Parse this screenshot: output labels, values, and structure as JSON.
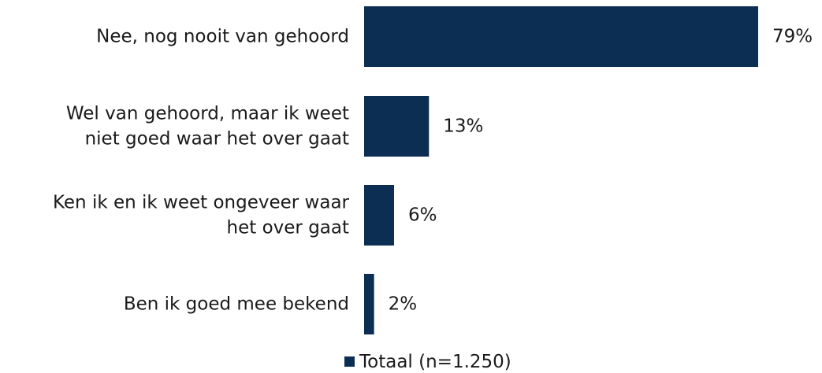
{
  "chart_data": {
    "type": "bar",
    "orientation": "horizontal",
    "categories": [
      "Nee, nog nooit van gehoord",
      "Wel van gehoord, maar ik weet niet goed waar het over gaat",
      "Ken ik en ik weet ongeveer waar het over gaat",
      "Ben ik goed mee bekend"
    ],
    "category_lines": [
      [
        "Nee, nog nooit van gehoord"
      ],
      [
        "Wel van gehoord, maar ik weet",
        "niet goed waar het over gaat"
      ],
      [
        "Ken ik en ik weet ongeveer waar",
        "het over gaat"
      ],
      [
        "Ben ik goed mee bekend"
      ]
    ],
    "series": [
      {
        "name": "Totaal (n=1.250)",
        "values": [
          79,
          13,
          6,
          2
        ],
        "labels": [
          "79%",
          "13%",
          "6%",
          "2%"
        ],
        "color": "#0b2e52"
      }
    ],
    "xlim": [
      0,
      100
    ],
    "grid": false,
    "legend": "bottom-center"
  }
}
